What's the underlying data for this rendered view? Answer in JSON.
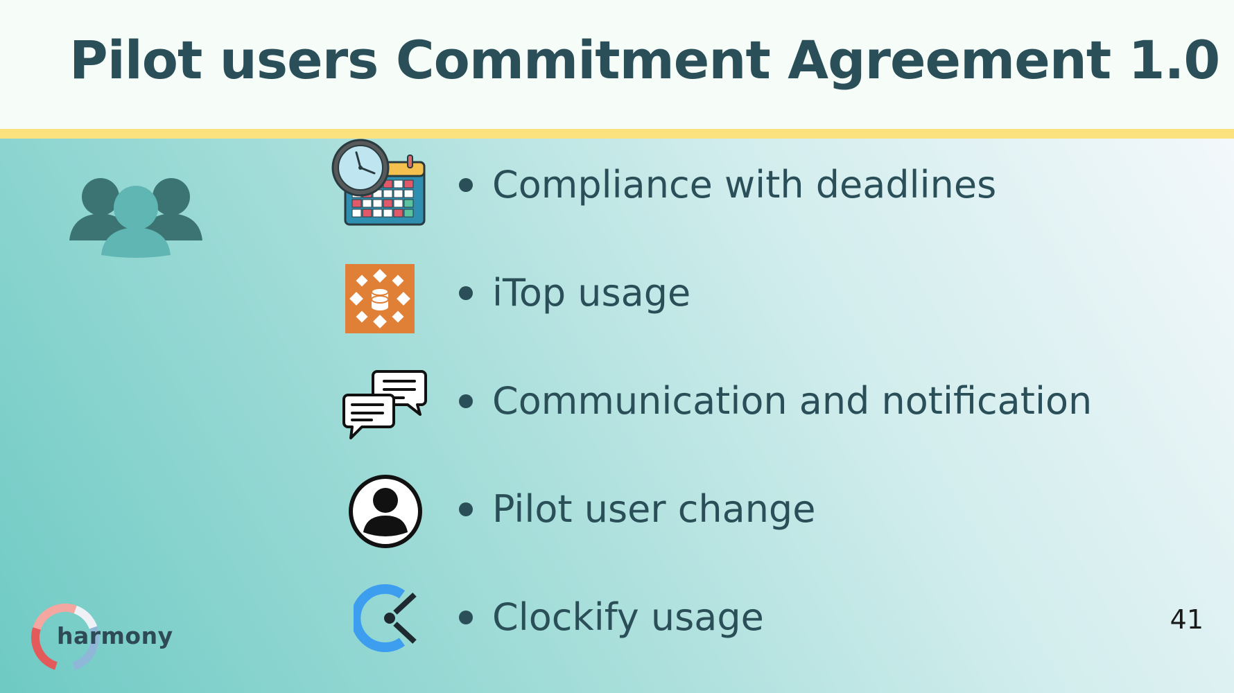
{
  "slide": {
    "title": "Pilot users Commitment Agreement 1.0",
    "page_number": "41"
  },
  "items": [
    {
      "label": "Compliance with deadlines",
      "icon": "calendar-clock-icon"
    },
    {
      "label": "iTop usage",
      "icon": "itop-logo-icon"
    },
    {
      "label": "Communication and notification",
      "icon": "chat-bubbles-icon"
    },
    {
      "label": "Pilot user change",
      "icon": "user-profile-icon"
    },
    {
      "label": "Clockify usage",
      "icon": "clockify-logo-icon"
    }
  ],
  "side_icon": "users-group-icon",
  "logo": {
    "text": "harmony"
  },
  "colors": {
    "title": "#2a4f58",
    "header_bg": "#f6fcf7",
    "divider": "#fbe27f",
    "gradient_start": "#6fcac4",
    "gradient_end": "#f3f8fb",
    "itop_orange": "#e07f36",
    "clockify_blue": "#3d9ef0"
  }
}
